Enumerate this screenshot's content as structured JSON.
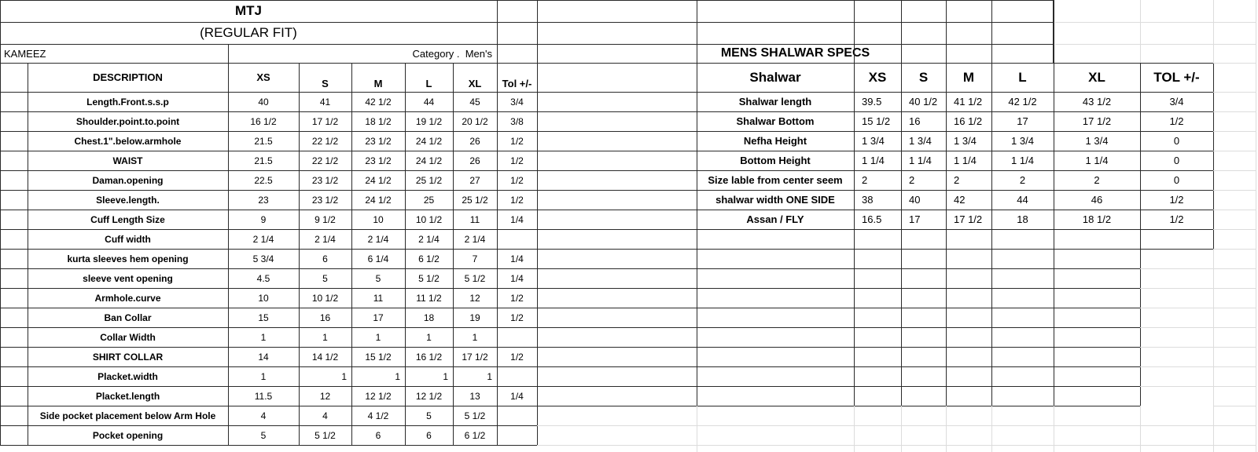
{
  "colors": {
    "background": "#ffffff",
    "text": "#000000",
    "border": "#2a2a2a",
    "faint_grid": "#dcdcdc"
  },
  "kameez": {
    "title": "MTJ",
    "subtitle": "(REGULAR FIT)",
    "label": "KAMEEZ",
    "category": "Category .  Men's",
    "columns": [
      "DESCRIPTION",
      "XS",
      "S",
      "M",
      "L",
      "XL",
      "Tol +/-"
    ],
    "rows": [
      {
        "desc": "Length.Front.s.s.p",
        "values": [
          "40",
          "41",
          "42 1/2",
          "44",
          "45"
        ],
        "tol": "3/4"
      },
      {
        "desc": "Shoulder.point.to.point",
        "values": [
          "16 1/2",
          "17 1/2",
          "18 1/2",
          "19 1/2",
          "20 1/2"
        ],
        "tol": "3/8"
      },
      {
        "desc": "Chest.1\".below.armhole",
        "values": [
          "21.5",
          "22 1/2",
          "23 1/2",
          "24 1/2",
          "26"
        ],
        "tol": "1/2"
      },
      {
        "desc": "WAIST",
        "values": [
          "21.5",
          "22 1/2",
          "23 1/2",
          "24 1/2",
          "26"
        ],
        "tol": "1/2"
      },
      {
        "desc": "Daman.opening",
        "values": [
          "22.5",
          "23 1/2",
          "24 1/2",
          "25 1/2",
          "27"
        ],
        "tol": "1/2"
      },
      {
        "desc": "Sleeve.length.",
        "values": [
          "23",
          "23 1/2",
          "24 1/2",
          "25",
          "25 1/2"
        ],
        "tol": "1/2"
      },
      {
        "desc": "Cuff Length Size",
        "values": [
          "9",
          "9 1/2",
          "10",
          "10 1/2",
          "11"
        ],
        "tol": "1/4"
      },
      {
        "desc": "Cuff width",
        "values": [
          "2 1/4",
          "2 1/4",
          "2 1/4",
          "2 1/4",
          "2 1/4"
        ],
        "tol": ""
      },
      {
        "desc": "kurta sleeves hem opening",
        "values": [
          "5 3/4",
          "6",
          "6 1/4",
          "6 1/2",
          "7"
        ],
        "tol": "1/4"
      },
      {
        "desc": "sleeve vent opening",
        "values": [
          "4.5",
          "5",
          "5",
          "5 1/2",
          "5 1/2"
        ],
        "tol": "1/4"
      },
      {
        "desc": "Armhole.curve",
        "values": [
          "10",
          "10 1/2",
          "11",
          "11 1/2",
          "12"
        ],
        "tol": "1/2"
      },
      {
        "desc": "Ban Collar",
        "values": [
          "15",
          "16",
          "17",
          "18",
          "19"
        ],
        "tol": "1/2"
      },
      {
        "desc": "Collar Width",
        "values": [
          "1",
          "1",
          "1",
          "1",
          "1"
        ],
        "tol": ""
      },
      {
        "desc": "SHIRT COLLAR",
        "values": [
          "14",
          "14 1/2",
          "15 1/2",
          "16 1/2",
          "17 1/2"
        ],
        "tol": "1/2"
      },
      {
        "desc": "Placket.width",
        "values": [
          "1",
          "1",
          "1",
          "1",
          "1"
        ],
        "tol": "",
        "values_align": [
          "center",
          "right",
          "right",
          "right",
          "right"
        ]
      },
      {
        "desc": "Placket.length",
        "values": [
          "11.5",
          "12",
          "12 1/2",
          "12 1/2",
          "13"
        ],
        "tol": "1/4"
      },
      {
        "desc": "Side pocket placement below Arm Hole",
        "values": [
          "4",
          "4",
          "4 1/2",
          "5",
          "5 1/2"
        ],
        "tol": ""
      },
      {
        "desc": "Pocket opening",
        "values": [
          "5",
          "5 1/2",
          "6",
          "6",
          "6 1/2"
        ],
        "tol": ""
      }
    ]
  },
  "shalwar": {
    "title": "MENS SHALWAR SPECS",
    "columns": [
      "Shalwar",
      "XS",
      "S",
      "M",
      "L",
      "XL",
      "TOL +/-"
    ],
    "rows": [
      {
        "desc": "Shalwar length",
        "values": [
          "39.5",
          "40 1/2",
          "41 1/2",
          "42 1/2",
          "43 1/2"
        ],
        "tol": "3/4"
      },
      {
        "desc": "Shalwar Bottom",
        "values": [
          "15 1/2",
          "16",
          "16 1/2",
          "17",
          "17 1/2"
        ],
        "tol": "1/2"
      },
      {
        "desc": "Nefha Height",
        "values": [
          "1 3/4",
          "1 3/4",
          "1 3/4",
          "1 3/4",
          "1 3/4"
        ],
        "tol": "0"
      },
      {
        "desc": "Bottom Height",
        "values": [
          "1 1/4",
          "1 1/4",
          "1 1/4",
          "1 1/4",
          "1 1/4"
        ],
        "tol": "0"
      },
      {
        "desc": "Size lable from center seem",
        "values": [
          "2",
          "2",
          "2",
          "2",
          "2"
        ],
        "tol": "0"
      },
      {
        "desc": "shalwar width ONE SIDE",
        "values": [
          "38",
          "40",
          "42",
          "44",
          "46"
        ],
        "tol": "1/2"
      },
      {
        "desc": "Assan / FLY",
        "values": [
          "16.5",
          "17",
          "17 1/2",
          "18",
          "18 1/2"
        ],
        "tol": "1/2"
      }
    ]
  }
}
